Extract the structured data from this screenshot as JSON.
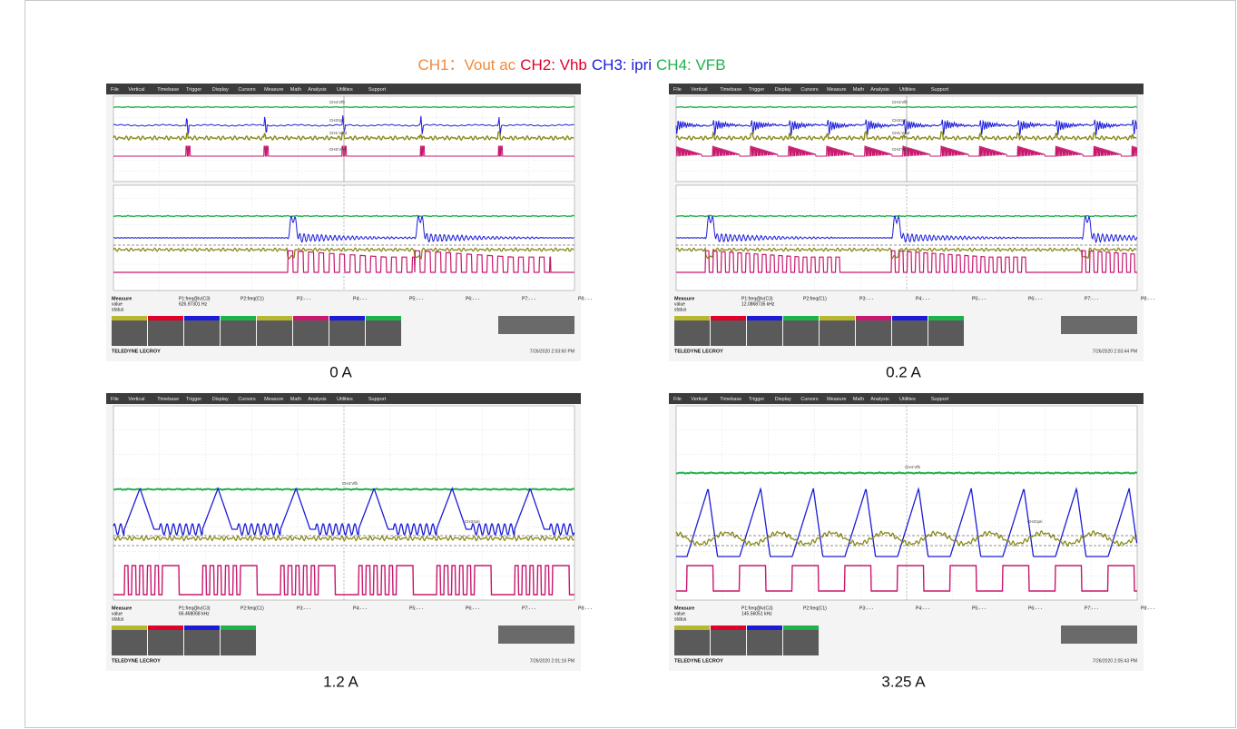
{
  "header": {
    "legend": [
      {
        "text": "CH1：Vout ac",
        "color": "#f08a3c"
      },
      {
        "text": "CH2: Vhb",
        "color": "#e0002a"
      },
      {
        "text": "CH3: ipri",
        "color": "#1c1cd8"
      },
      {
        "text": "CH4: VFB",
        "color": "#1fb24a"
      }
    ]
  },
  "menu": [
    "File",
    "Vertical",
    "Timebase",
    "Trigger",
    "Display",
    "Cursors",
    "Measure",
    "Math",
    "Analysis",
    "Utilities",
    "Support"
  ],
  "trace_labels": [
    "CH4:Vfb",
    "CH3:Ipri",
    "CH1:Vout",
    "CH2:Vhb"
  ],
  "measure": {
    "title": "Measure",
    "rows": [
      "value",
      "status"
    ],
    "params": [
      "P2:freq(C1)",
      "P3:- - -",
      "P4:- - -",
      "P5:- - -",
      "P6:- - -",
      "P7:- - -",
      "P8:- - -"
    ]
  },
  "brand": "TELEDYNE LECROY",
  "panels": [
    {
      "caption": "0 A",
      "p1": "P1:freq@lv(C3)",
      "p1_value": "626.97301 Hz",
      "timestamp": "7/26/2020 2:03:60 PM"
    },
    {
      "caption": "0.2 A",
      "p1": "P1:freq@lv(C3)",
      "p1_value": "12.0868735 kHz",
      "timestamp": "7/26/2020 2:03:44 PM"
    },
    {
      "caption": "1.2 A",
      "p1": "P1:freq@lv(C3)",
      "p1_value": "66.468068 kHz",
      "timestamp": "7/26/2020 2:01:16 PM"
    },
    {
      "caption": "3.25 A",
      "p1": "P1:freq@lv(C3)",
      "p1_value": "145.56051 kHz",
      "timestamp": "7/26/2020 2:05:43 PM"
    }
  ]
}
